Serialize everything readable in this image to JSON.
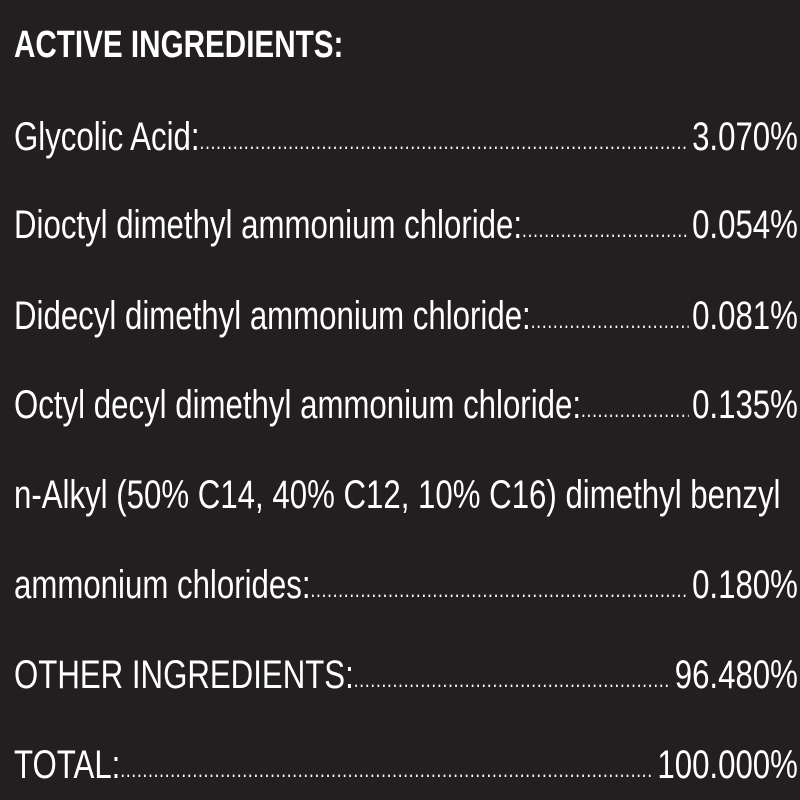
{
  "heading": "ACTIVE INGREDIENTS:",
  "ingredients": [
    {
      "label": "Glycolic Acid:",
      "value": "3.070%"
    },
    {
      "label": "Dioctyl dimethyl ammonium chloride:",
      "value": "0.054%"
    },
    {
      "label": "Didecyl dimethyl ammonium chloride:",
      "value": "0.081%"
    },
    {
      "label": "Octyl decyl dimethyl ammonium chloride:",
      "value": "0.135%"
    },
    {
      "label_line1": "n-Alkyl (50% C14, 40% C12, 10% C16) dimethyl benzyl",
      "label": "ammonium chlorides:",
      "value": "0.180%"
    }
  ],
  "other": {
    "label": "OTHER INGREDIENTS:",
    "value": "96.480%"
  },
  "total": {
    "label": "TOTAL:",
    "value": "100.000%"
  }
}
